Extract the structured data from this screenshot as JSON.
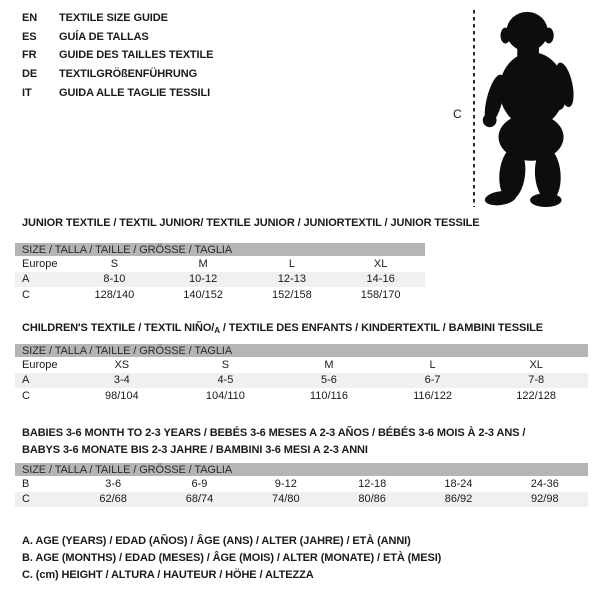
{
  "colors": {
    "header_bar": "#b5b5b5",
    "row_shade": "#f0f0f0",
    "text": "#1a1a1a",
    "silhouette": "#0d0d0d"
  },
  "languages": {
    "items": [
      {
        "code": "EN",
        "title": "TEXTILE SIZE GUIDE"
      },
      {
        "code": "ES",
        "title": "GUÍA DE TALLAS"
      },
      {
        "code": "FR",
        "title": "GUIDE DES TAILLES TEXTILE"
      },
      {
        "code": "DE",
        "title": "TEXTILGRÖßENFÜHRUNG"
      },
      {
        "code": "IT",
        "title": "GUIDA ALLE TAGLIE TESSILI"
      }
    ]
  },
  "figure": {
    "measure_label": "C"
  },
  "tables": [
    {
      "title": "JUNIOR TEXTILE / TEXTIL JUNIOR/ TEXTILE JUNIOR / JUNIORTEXTIL / JUNIOR TESSILE",
      "size_header": "SIZE / TALLA / TAILLE / GRÖSSE / TAGLIA",
      "rows": [
        {
          "label": "Europe",
          "values": [
            "S",
            "M",
            "L",
            "XL"
          ],
          "shaded": false
        },
        {
          "label": "A",
          "values": [
            "8-10",
            "10-12",
            "12-13",
            "14-16"
          ],
          "shaded": true
        },
        {
          "label": "C",
          "values": [
            "128/140",
            "140/152",
            "152/158",
            "158/170"
          ],
          "shaded": false
        }
      ]
    },
    {
      "title_pre": "CHILDREN'S TEXTILE / TEXTIL NIÑO/",
      "title_sub": "A",
      "title_post": " / TEXTILE DES ENFANTS / KINDERTEXTIL / BAMBINI TESSILE",
      "size_header": "SIZE / TALLA / TAILLE / GRÖSSE / TAGLIA",
      "rows": [
        {
          "label": "Europe",
          "values": [
            "XS",
            "S",
            "M",
            "L",
            "XL"
          ],
          "shaded": false
        },
        {
          "label": "A",
          "values": [
            "3-4",
            "4-5",
            "5-6",
            "6-7",
            "7-8"
          ],
          "shaded": true
        },
        {
          "label": "C",
          "values": [
            "98/104",
            "104/110",
            "110/116",
            "116/122",
            "122/128"
          ],
          "shaded": false
        }
      ]
    },
    {
      "title_line1": "BABIES 3-6 MONTH TO 2-3 YEARS / BEBÉS 3-6 MESES A 2-3 AÑOS / BÉBÉS 3-6 MOIS À 2-3 ANS /",
      "title_line2": "BABYS 3-6 MONATE BIS 2-3 JAHRE / BAMBINI 3-6 MESI A 2-3 ANNI",
      "size_header": "SIZE / TALLA / TAILLE / GRÖSSE / TAGLIA",
      "rows": [
        {
          "label": "B",
          "values": [
            "3-6",
            "6-9",
            "9-12",
            "12-18",
            "18-24",
            "24-36"
          ],
          "shaded": false
        },
        {
          "label": "C",
          "values": [
            "62/68",
            "68/74",
            "74/80",
            "80/86",
            "86/92",
            "92/98"
          ],
          "shaded": true
        }
      ]
    }
  ],
  "footnotes": [
    "A. AGE (YEARS) / EDAD (AÑOS) / ÂGE (ANS) / ALTER (JAHRE) / ETÀ (ANNI)",
    "B. AGE (MONTHS) / EDAD (MESES) / ÂGE (MOIS) / ALTER (MONATE) / ETÀ (MESI)",
    "C. (cm) HEIGHT / ALTURA / HAUTEUR / HÖHE / ALTEZZA"
  ]
}
